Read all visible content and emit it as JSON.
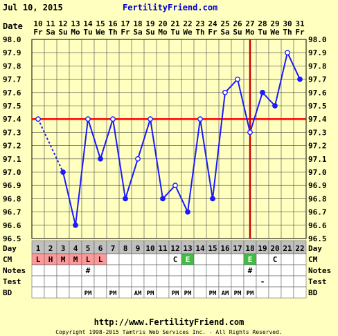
{
  "header": {
    "date": "Jul 10, 2015",
    "site": "FertilityFriend.com"
  },
  "footer": {
    "url": "http://www.FertilityFriend.com",
    "copyright": "Copyright 1998-2015 Tamtris Web Services Inc. - All Rights Reserved."
  },
  "labels": {
    "date": "Date",
    "day": "Day",
    "cm": "CM",
    "notes": "Notes",
    "test": "Test",
    "bd": "BD"
  },
  "colors": {
    "grid_bg": "#ffffc0",
    "line": "#1a1aff",
    "coverline": "#ff0000",
    "ovulation": "#cc0000",
    "day_row": "#c0c0c0",
    "cm_pink": "#ff9999",
    "cm_green": "#44bb44"
  },
  "chart_data": {
    "type": "line",
    "title": "",
    "xlabel": "Day",
    "ylabel": "",
    "ylim": [
      96.5,
      98.0
    ],
    "yticks": [
      "98.0",
      "97.9",
      "97.8",
      "97.7",
      "97.6",
      "97.5",
      "97.4",
      "97.3",
      "97.2",
      "97.1",
      "97.0",
      "96.9",
      "96.8",
      "96.7",
      "96.6",
      "96.5"
    ],
    "dates": [
      "10",
      "11",
      "12",
      "13",
      "14",
      "15",
      "16",
      "17",
      "18",
      "19",
      "20",
      "21",
      "22",
      "23",
      "24",
      "25",
      "26",
      "27",
      "28",
      "29",
      "30",
      "31"
    ],
    "weekdays": [
      "Fr",
      "Sa",
      "Su",
      "Mo",
      "Tu",
      "We",
      "Th",
      "Fr",
      "Sa",
      "Su",
      "Mo",
      "Tu",
      "We",
      "Th",
      "Fr",
      "Sa",
      "Su",
      "Mo",
      "Tu",
      "We",
      "Th",
      "Fr"
    ],
    "days": [
      "1",
      "2",
      "3",
      "4",
      "5",
      "6",
      "7",
      "8",
      "9",
      "10",
      "11",
      "12",
      "13",
      "14",
      "15",
      "16",
      "17",
      "18",
      "19",
      "20",
      "21",
      "22"
    ],
    "temps": [
      97.4,
      null,
      97.0,
      96.6,
      97.4,
      97.1,
      97.4,
      96.8,
      97.1,
      97.4,
      96.8,
      96.9,
      96.7,
      97.4,
      96.8,
      97.6,
      97.7,
      97.3,
      97.6,
      97.5,
      97.9,
      97.7
    ],
    "open_points": [
      true,
      false,
      false,
      false,
      true,
      false,
      true,
      false,
      true,
      true,
      false,
      true,
      false,
      true,
      false,
      true,
      true,
      true,
      false,
      false,
      true,
      false
    ],
    "coverline": 97.4,
    "ovulation_day": 18,
    "cm": [
      "L",
      "H",
      "M",
      "M",
      "L",
      "L",
      "",
      "",
      "",
      "",
      "",
      "C",
      "E",
      "",
      "",
      "",
      "",
      "E",
      "",
      "C",
      "",
      ""
    ],
    "notes": [
      "",
      "",
      "",
      "",
      "#",
      "",
      "",
      "",
      "",
      "",
      "",
      "",
      "",
      "",
      "",
      "",
      "",
      "#",
      "",
      "",
      "",
      ""
    ],
    "test": [
      "",
      "",
      "",
      "",
      "",
      "",
      "",
      "",
      "",
      "",
      "",
      "",
      "",
      "",
      "",
      "",
      "",
      "",
      "-",
      "",
      "",
      ""
    ],
    "bd": [
      "",
      "",
      "",
      "",
      "PM",
      "",
      "PM",
      "",
      "AM",
      "PM",
      "",
      "PM",
      "PM",
      "",
      "PM",
      "AM",
      "PM",
      "PM",
      "",
      "",
      "",
      ""
    ]
  }
}
